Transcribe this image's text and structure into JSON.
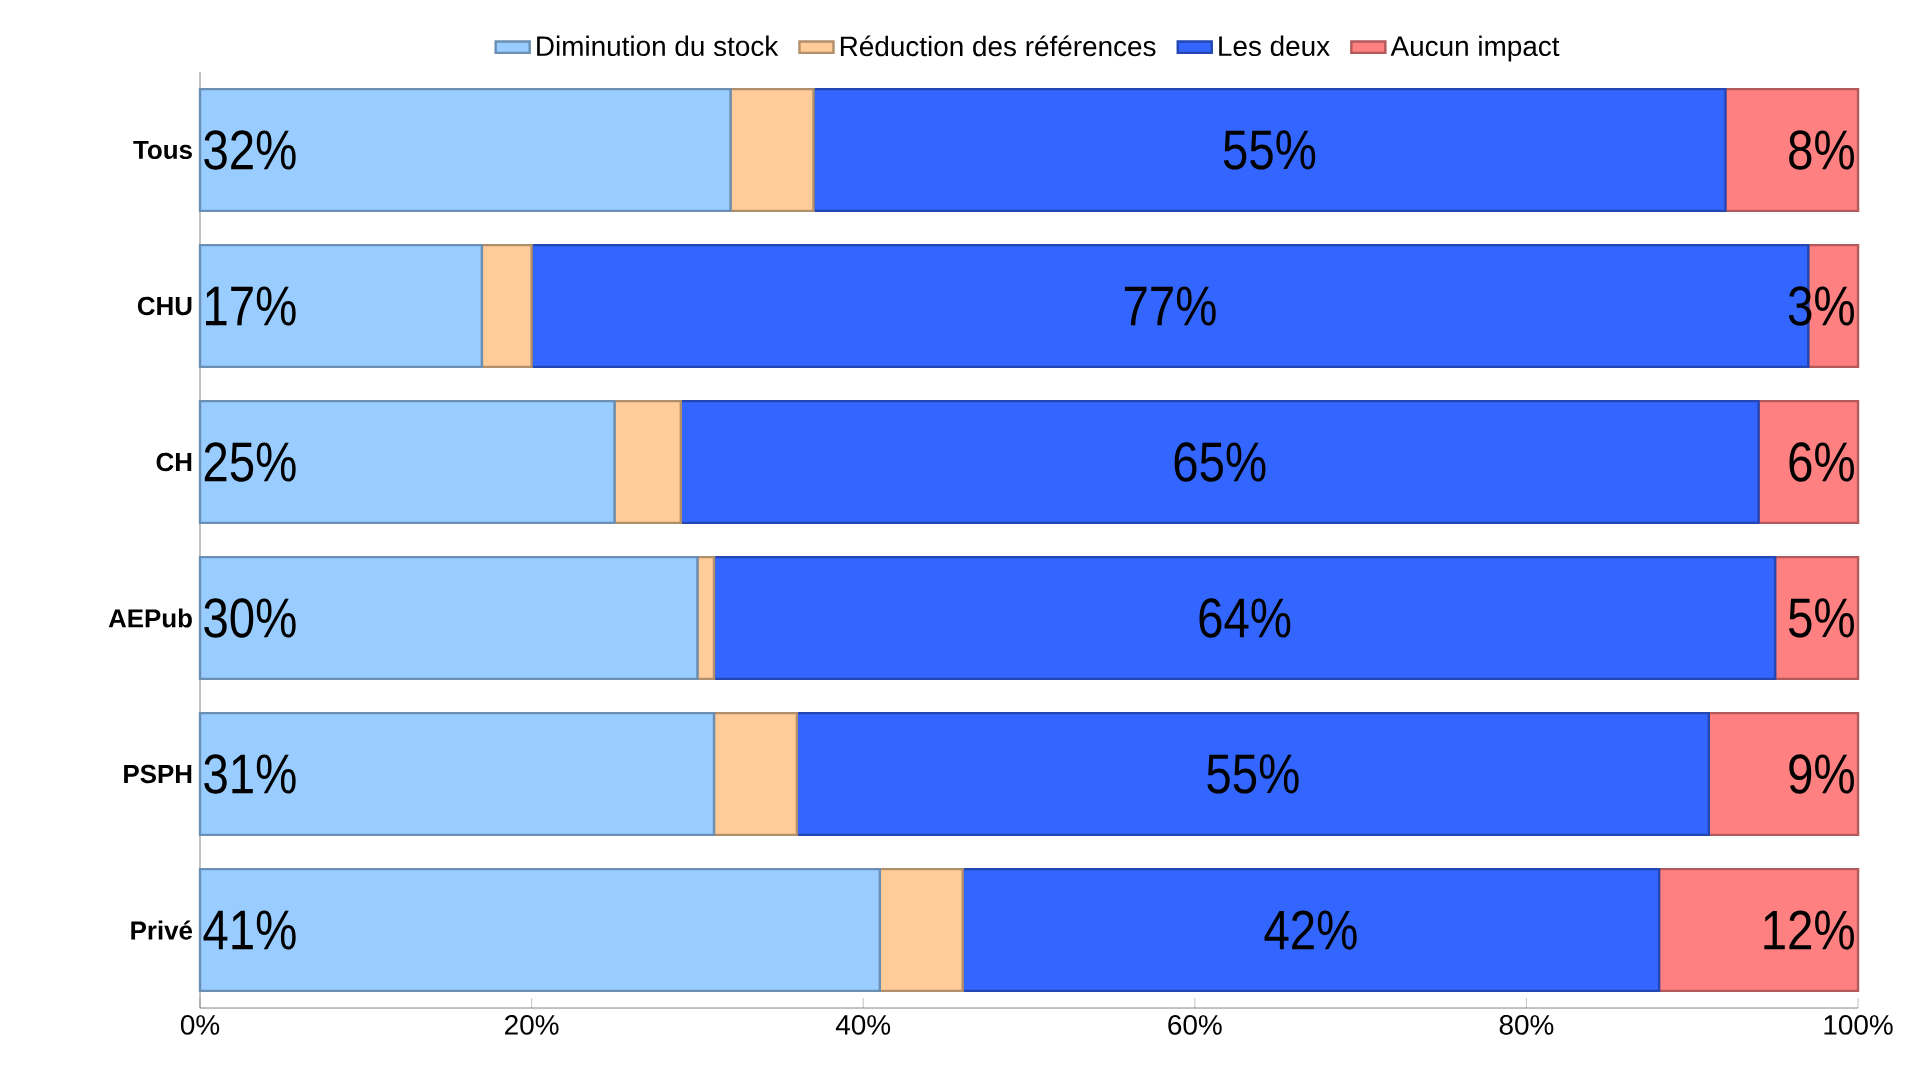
{
  "chart_data": {
    "type": "bar",
    "orientation": "horizontal",
    "stacked": true,
    "legend": "top",
    "categories": [
      "Tous",
      "CHU",
      "CH",
      "AEPub",
      "PSPH",
      "Privé"
    ],
    "series": [
      {
        "name": "Diminution du stock",
        "color": "#99ccff",
        "values": [
          32,
          17,
          25,
          30,
          31,
          41
        ],
        "value_labels": [
          "32%",
          "17%",
          "25%",
          "30%",
          "31%",
          "41%"
        ]
      },
      {
        "name": "Réduction des références",
        "color": "#ffcc99",
        "values": [
          5,
          3,
          4,
          1,
          5,
          5
        ],
        "value_labels": [
          null,
          null,
          null,
          null,
          null,
          null
        ]
      },
      {
        "name": "Les deux",
        "color": "#3366ff",
        "values": [
          55,
          77,
          65,
          64,
          55,
          42
        ],
        "value_labels": [
          "55%",
          "77%",
          "65%",
          "64%",
          "55%",
          "42%"
        ]
      },
      {
        "name": "Aucun impact",
        "color": "#ff8080",
        "values": [
          8,
          3,
          6,
          5,
          9,
          12
        ],
        "value_labels": [
          "8%",
          "3%",
          "6%",
          "5%",
          "9%",
          "12%"
        ]
      }
    ],
    "xlim": [
      0,
      100
    ],
    "xticks": [
      {
        "value": 0,
        "label": "0%"
      },
      {
        "value": 20,
        "label": "20%"
      },
      {
        "value": 40,
        "label": "40%"
      },
      {
        "value": 60,
        "label": "60%"
      },
      {
        "value": 80,
        "label": "80%"
      },
      {
        "value": 100,
        "label": "100%"
      }
    ]
  }
}
